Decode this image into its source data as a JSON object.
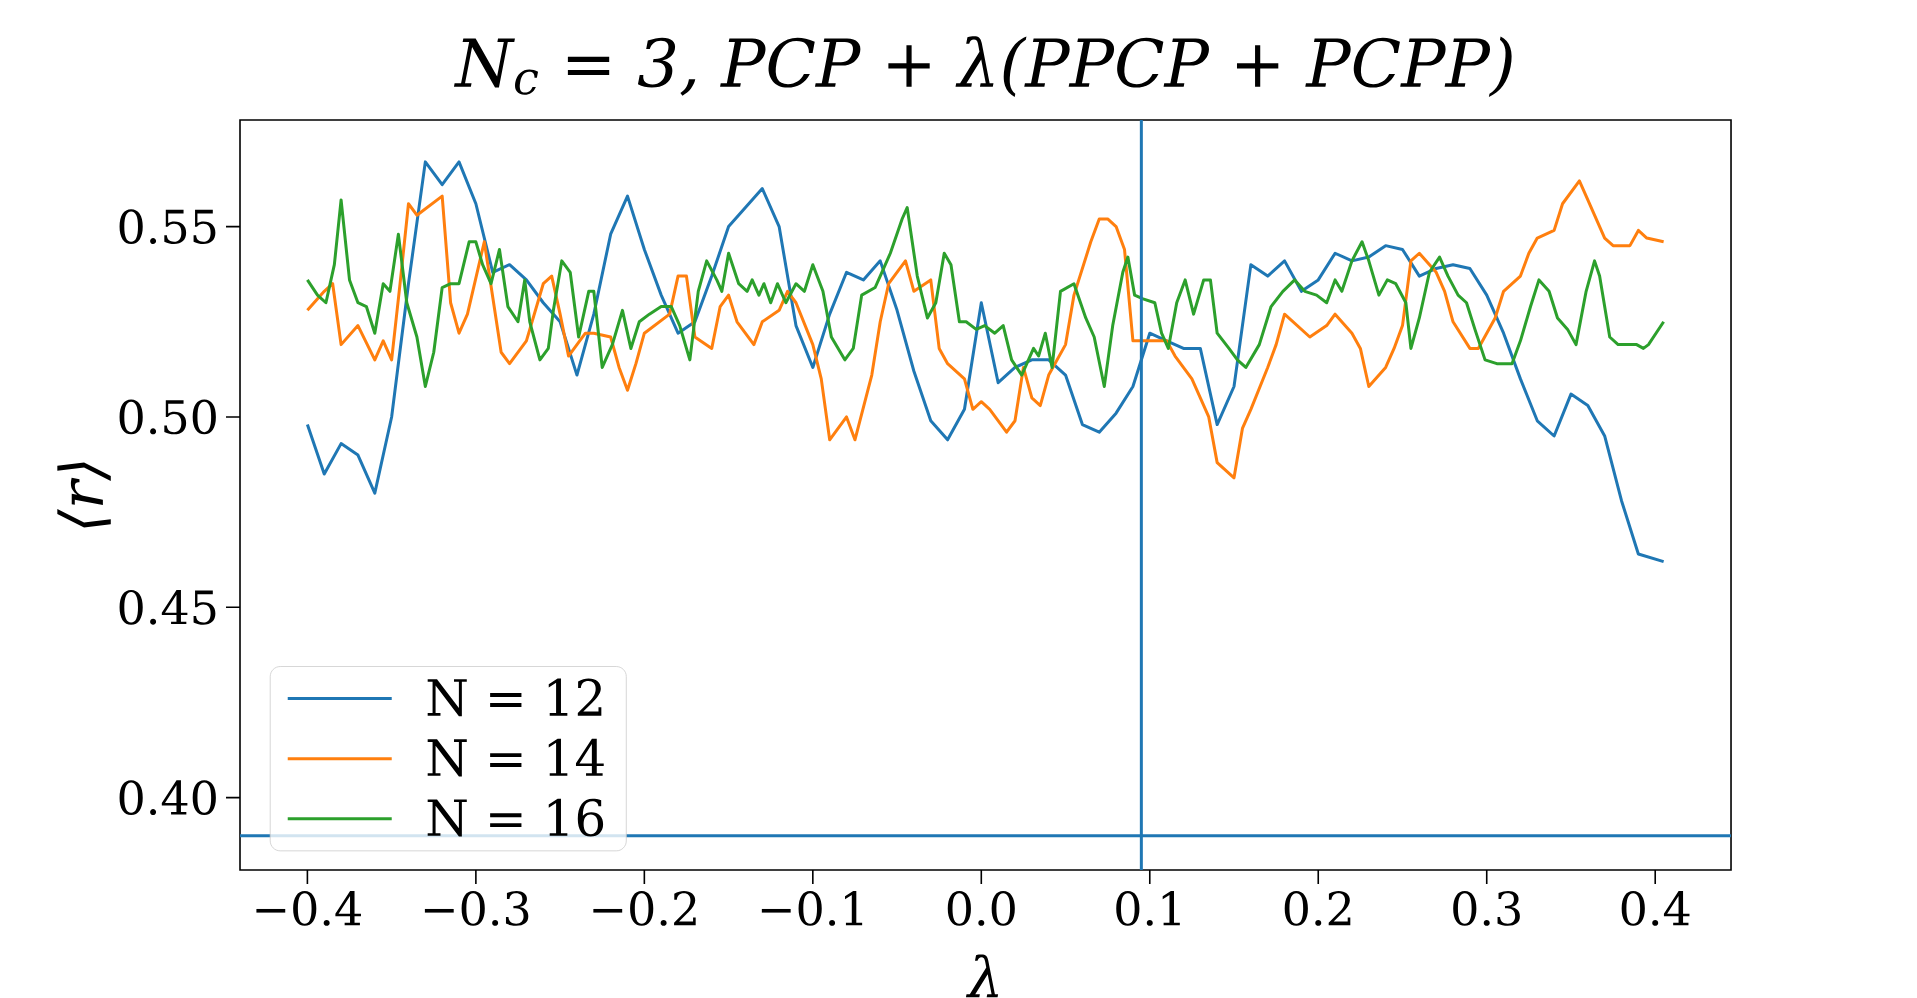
{
  "chart_data": {
    "type": "line",
    "title": "N$_{c}$ = 3, PCP + λ(PPCP + PCPP)",
    "xlabel": "λ",
    "ylabel": "⟨r⟩",
    "xlim": [
      -0.44,
      0.445
    ],
    "ylim": [
      0.381,
      0.578
    ],
    "xticks": [
      {
        "value": -0.4,
        "label": "−0.4"
      },
      {
        "value": -0.3,
        "label": "−0.3"
      },
      {
        "value": -0.2,
        "label": "−0.2"
      },
      {
        "value": -0.1,
        "label": "−0.1"
      },
      {
        "value": 0,
        "label": "0.0"
      },
      {
        "value": 0.1,
        "label": "0.1"
      },
      {
        "value": 0.2,
        "label": "0.2"
      },
      {
        "value": 0.3,
        "label": "0.3"
      },
      {
        "value": 0.4,
        "label": "0.4"
      }
    ],
    "yticks": [
      {
        "value": 0.4,
        "label": "0.40"
      },
      {
        "value": 0.45,
        "label": "0.45"
      },
      {
        "value": 0.5,
        "label": "0.50"
      },
      {
        "value": 0.55,
        "label": "0.55"
      }
    ],
    "legend": "bottom left",
    "grid": false,
    "marker": "none",
    "line_style": "solid",
    "ref_lines": [
      {
        "axis": "y",
        "value": 0.39,
        "color": "#1f77b4"
      },
      {
        "axis": "x",
        "value": 0.095,
        "color": "#1f77b4"
      }
    ],
    "series": [
      {
        "name": "N = 12",
        "color": "#1f77b4",
        "x": [
          -0.4,
          -0.39,
          -0.38,
          -0.37,
          -0.36,
          -0.35,
          -0.34,
          -0.33,
          -0.32,
          -0.31,
          -0.3,
          -0.29,
          -0.28,
          -0.27,
          -0.26,
          -0.25,
          -0.24,
          -0.23,
          -0.22,
          -0.21,
          -0.2,
          -0.19,
          -0.18,
          -0.17,
          -0.16,
          -0.15,
          -0.14,
          -0.13,
          -0.12,
          -0.11,
          -0.1,
          -0.09,
          -0.08,
          -0.07,
          -0.06,
          -0.05,
          -0.04,
          -0.03,
          -0.02,
          -0.01,
          0,
          0.01,
          0.02,
          0.03,
          0.04,
          0.05,
          0.06,
          0.07,
          0.08,
          0.09,
          0.1,
          0.11,
          0.12,
          0.13,
          0.14,
          0.15,
          0.16,
          0.17,
          0.18,
          0.19,
          0.2,
          0.21,
          0.22,
          0.23,
          0.24,
          0.25,
          0.26,
          0.27,
          0.28,
          0.29,
          0.3,
          0.31,
          0.32,
          0.33,
          0.34,
          0.35,
          0.36,
          0.37,
          0.38,
          0.39,
          0.405
        ],
        "values": [
          0.498,
          0.485,
          0.493,
          0.49,
          0.48,
          0.5,
          0.535,
          0.567,
          0.561,
          0.567,
          0.556,
          0.538,
          0.54,
          0.536,
          0.53,
          0.525,
          0.511,
          0.527,
          0.548,
          0.558,
          0.544,
          0.532,
          0.522,
          0.525,
          0.537,
          0.55,
          0.555,
          0.56,
          0.55,
          0.524,
          0.513,
          0.527,
          0.538,
          0.536,
          0.541,
          0.528,
          0.512,
          0.499,
          0.494,
          0.502,
          0.53,
          0.509,
          0.513,
          0.515,
          0.515,
          0.511,
          0.498,
          0.496,
          0.501,
          0.508,
          0.522,
          0.52,
          0.518,
          0.518,
          0.498,
          0.508,
          0.54,
          0.537,
          0.541,
          0.533,
          0.536,
          0.543,
          0.541,
          0.542,
          0.545,
          0.544,
          0.537,
          0.539,
          0.54,
          0.539,
          0.532,
          0.522,
          0.51,
          0.499,
          0.495,
          0.506,
          0.503,
          0.495,
          0.478,
          0.464,
          0.462
        ]
      },
      {
        "name": "N = 14",
        "color": "#ff7f0e",
        "x": [
          -0.4,
          -0.39,
          -0.385,
          -0.38,
          -0.37,
          -0.36,
          -0.355,
          -0.35,
          -0.345,
          -0.34,
          -0.335,
          -0.32,
          -0.315,
          -0.31,
          -0.305,
          -0.295,
          -0.285,
          -0.28,
          -0.27,
          -0.26,
          -0.255,
          -0.25,
          -0.245,
          -0.235,
          -0.23,
          -0.22,
          -0.215,
          -0.21,
          -0.205,
          -0.2,
          -0.185,
          -0.18,
          -0.175,
          -0.17,
          -0.16,
          -0.155,
          -0.15,
          -0.145,
          -0.135,
          -0.13,
          -0.12,
          -0.115,
          -0.11,
          -0.1,
          -0.095,
          -0.09,
          -0.08,
          -0.075,
          -0.065,
          -0.06,
          -0.055,
          -0.045,
          -0.04,
          -0.03,
          -0.025,
          -0.02,
          -0.01,
          -0.005,
          0,
          0.005,
          0.015,
          0.02,
          0.025,
          0.03,
          0.035,
          0.04,
          0.05,
          0.055,
          0.065,
          0.07,
          0.075,
          0.08,
          0.085,
          0.09,
          0.1,
          0.11,
          0.115,
          0.125,
          0.135,
          0.14,
          0.15,
          0.155,
          0.16,
          0.17,
          0.175,
          0.18,
          0.185,
          0.195,
          0.205,
          0.21,
          0.22,
          0.225,
          0.23,
          0.24,
          0.245,
          0.25,
          0.255,
          0.26,
          0.27,
          0.275,
          0.28,
          0.29,
          0.295,
          0.305,
          0.31,
          0.32,
          0.325,
          0.33,
          0.34,
          0.345,
          0.355,
          0.36,
          0.37,
          0.375,
          0.385,
          0.39,
          0.395,
          0.405
        ],
        "values": [
          0.528,
          0.533,
          0.535,
          0.519,
          0.524,
          0.515,
          0.52,
          0.515,
          0.535,
          0.556,
          0.553,
          0.558,
          0.53,
          0.522,
          0.527,
          0.546,
          0.517,
          0.514,
          0.52,
          0.535,
          0.537,
          0.527,
          0.516,
          0.522,
          0.522,
          0.521,
          0.513,
          0.507,
          0.514,
          0.522,
          0.527,
          0.537,
          0.537,
          0.521,
          0.518,
          0.529,
          0.532,
          0.525,
          0.519,
          0.525,
          0.528,
          0.533,
          0.53,
          0.519,
          0.51,
          0.494,
          0.5,
          0.494,
          0.511,
          0.525,
          0.535,
          0.541,
          0.533,
          0.536,
          0.518,
          0.514,
          0.51,
          0.502,
          0.504,
          0.502,
          0.496,
          0.499,
          0.513,
          0.505,
          0.503,
          0.511,
          0.519,
          0.532,
          0.546,
          0.552,
          0.552,
          0.55,
          0.544,
          0.52,
          0.52,
          0.52,
          0.516,
          0.51,
          0.5,
          0.488,
          0.484,
          0.497,
          0.502,
          0.513,
          0.519,
          0.527,
          0.525,
          0.521,
          0.524,
          0.527,
          0.522,
          0.518,
          0.508,
          0.513,
          0.518,
          0.524,
          0.541,
          0.543,
          0.538,
          0.533,
          0.525,
          0.518,
          0.518,
          0.526,
          0.533,
          0.537,
          0.543,
          0.547,
          0.549,
          0.556,
          0.562,
          0.557,
          0.547,
          0.545,
          0.545,
          0.549,
          0.547,
          0.546
        ]
      },
      {
        "name": "N = 16",
        "color": "#2ca02c",
        "x": [
          -0.4,
          -0.394,
          -0.389,
          -0.384,
          -0.38,
          -0.375,
          -0.37,
          -0.365,
          -0.36,
          -0.355,
          -0.351,
          -0.346,
          -0.341,
          -0.335,
          -0.33,
          -0.325,
          -0.32,
          -0.315,
          -0.31,
          -0.304,
          -0.3,
          -0.296,
          -0.291,
          -0.286,
          -0.281,
          -0.275,
          -0.271,
          -0.268,
          -0.262,
          -0.257,
          -0.254,
          -0.249,
          -0.244,
          -0.239,
          -0.233,
          -0.23,
          -0.225,
          -0.219,
          -0.213,
          -0.208,
          -0.203,
          -0.197,
          -0.19,
          -0.184,
          -0.179,
          -0.173,
          -0.168,
          -0.163,
          -0.157,
          -0.154,
          -0.15,
          -0.144,
          -0.139,
          -0.136,
          -0.132,
          -0.129,
          -0.125,
          -0.121,
          -0.116,
          -0.11,
          -0.105,
          -0.1,
          -0.094,
          -0.089,
          -0.081,
          -0.076,
          -0.071,
          -0.063,
          -0.06,
          -0.054,
          -0.047,
          -0.044,
          -0.038,
          -0.032,
          -0.027,
          -0.022,
          -0.018,
          -0.013,
          -0.009,
          -0.003,
          0.002,
          0.008,
          0.013,
          0.018,
          0.024,
          0.031,
          0.034,
          0.038,
          0.042,
          0.047,
          0.055,
          0.062,
          0.067,
          0.073,
          0.078,
          0.084,
          0.087,
          0.091,
          0.096,
          0.103,
          0.107,
          0.111,
          0.116,
          0.121,
          0.126,
          0.132,
          0.136,
          0.14,
          0.147,
          0.152,
          0.157,
          0.165,
          0.172,
          0.179,
          0.186,
          0.192,
          0.199,
          0.205,
          0.21,
          0.214,
          0.22,
          0.226,
          0.23,
          0.236,
          0.241,
          0.246,
          0.252,
          0.255,
          0.26,
          0.266,
          0.272,
          0.277,
          0.283,
          0.288,
          0.293,
          0.299,
          0.306,
          0.315,
          0.32,
          0.326,
          0.331,
          0.337,
          0.342,
          0.348,
          0.353,
          0.359,
          0.364,
          0.367,
          0.373,
          0.378,
          0.384,
          0.389,
          0.393,
          0.396,
          0.405
        ],
        "values": [
          0.536,
          0.532,
          0.53,
          0.54,
          0.557,
          0.536,
          0.53,
          0.529,
          0.522,
          0.535,
          0.533,
          0.548,
          0.53,
          0.521,
          0.508,
          0.517,
          0.534,
          0.535,
          0.535,
          0.546,
          0.546,
          0.54,
          0.535,
          0.544,
          0.529,
          0.525,
          0.536,
          0.525,
          0.515,
          0.518,
          0.528,
          0.541,
          0.538,
          0.521,
          0.533,
          0.533,
          0.513,
          0.519,
          0.528,
          0.518,
          0.525,
          0.527,
          0.529,
          0.529,
          0.524,
          0.515,
          0.533,
          0.541,
          0.536,
          0.533,
          0.543,
          0.535,
          0.533,
          0.536,
          0.532,
          0.535,
          0.53,
          0.535,
          0.53,
          0.535,
          0.533,
          0.54,
          0.533,
          0.521,
          0.515,
          0.518,
          0.532,
          0.534,
          0.537,
          0.543,
          0.552,
          0.555,
          0.537,
          0.526,
          0.53,
          0.543,
          0.54,
          0.525,
          0.525,
          0.523,
          0.524,
          0.522,
          0.524,
          0.515,
          0.511,
          0.518,
          0.516,
          0.522,
          0.513,
          0.533,
          0.535,
          0.526,
          0.521,
          0.508,
          0.524,
          0.538,
          0.542,
          0.532,
          0.531,
          0.53,
          0.522,
          0.518,
          0.53,
          0.536,
          0.527,
          0.536,
          0.536,
          0.522,
          0.518,
          0.515,
          0.513,
          0.519,
          0.529,
          0.533,
          0.536,
          0.533,
          0.532,
          0.53,
          0.536,
          0.533,
          0.541,
          0.546,
          0.541,
          0.532,
          0.536,
          0.535,
          0.53,
          0.518,
          0.526,
          0.538,
          0.542,
          0.537,
          0.532,
          0.53,
          0.523,
          0.515,
          0.514,
          0.514,
          0.52,
          0.529,
          0.536,
          0.533,
          0.526,
          0.523,
          0.519,
          0.533,
          0.541,
          0.537,
          0.521,
          0.519,
          0.519,
          0.519,
          0.518,
          0.519,
          0.525
        ]
      }
    ]
  }
}
